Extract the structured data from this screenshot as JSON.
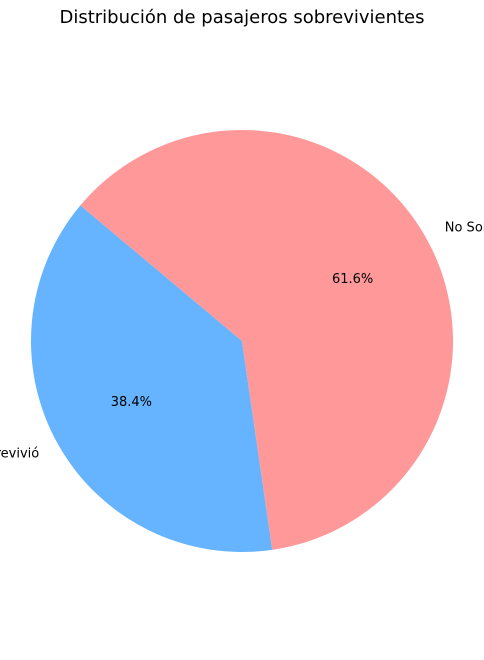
{
  "chart_data": {
    "type": "pie",
    "title": "Distribución de pasajeros sobrevivientes",
    "slices": [
      {
        "label": "Sobrevivió",
        "value": 38.4,
        "pct_label": "38.4%",
        "color": "#66b3ff"
      },
      {
        "label": "No Sobrevivió",
        "value": 61.6,
        "pct_label": "61.6%",
        "color": "#ff9999"
      }
    ],
    "start_angle_deg": 140,
    "direction": "counterclockwise"
  }
}
